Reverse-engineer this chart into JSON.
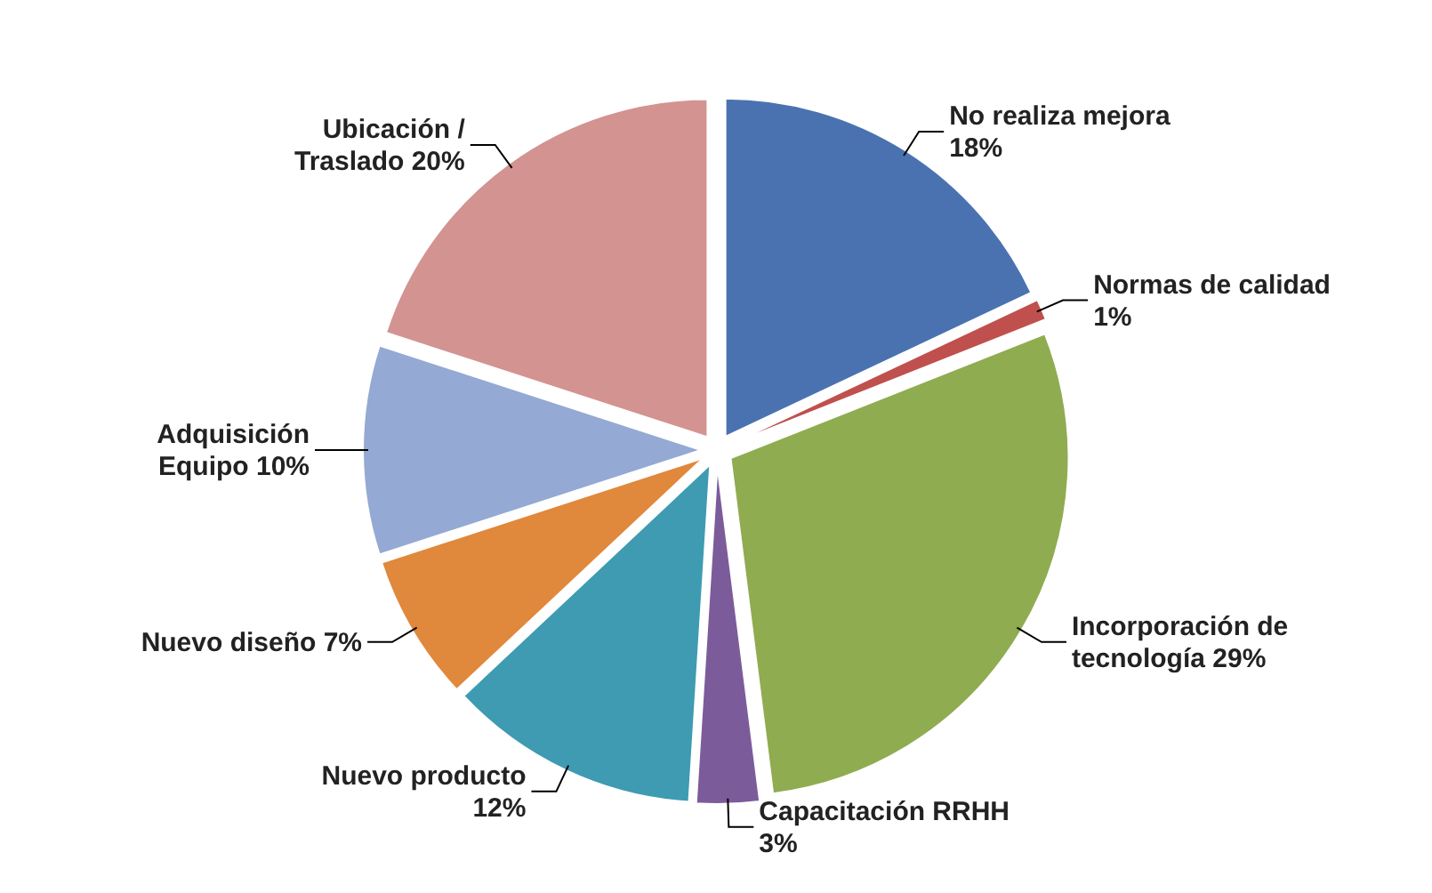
{
  "chart_data": {
    "type": "pie",
    "categories": [
      "No realiza mejora",
      "Normas de calidad",
      "Incorporación de tecnología",
      "Capacitación RRHH",
      "Nuevo producto",
      "Nuevo diseño",
      "Adquisición Equipo",
      "Ubicación / Traslado"
    ],
    "values": [
      18,
      1,
      29,
      3,
      12,
      7,
      10,
      20
    ],
    "colors": [
      "#4a72b0",
      "#c0504d",
      "#8fac50",
      "#7c5b9b",
      "#3e9bb2",
      "#e0883b",
      "#94a9d3",
      "#d29391"
    ],
    "value_labels": [
      "18%",
      "1%",
      "29%",
      "3%",
      "12%",
      "7%",
      "10%",
      "20%"
    ]
  }
}
